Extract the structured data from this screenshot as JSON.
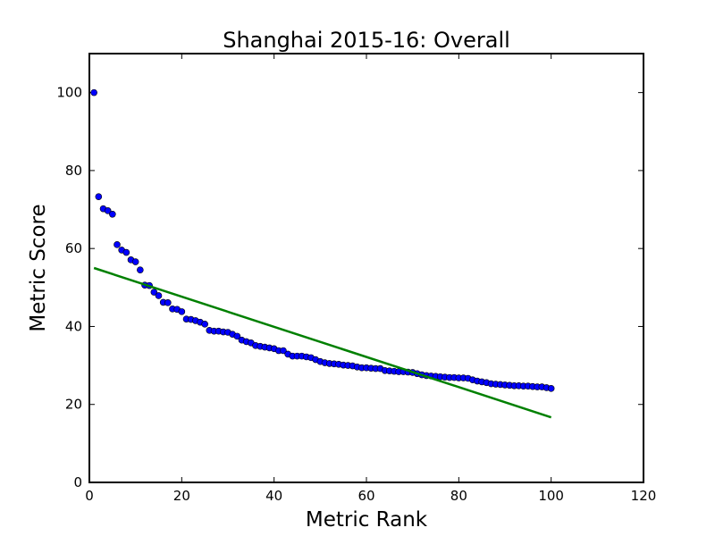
{
  "chart_data": {
    "type": "scatter",
    "title": "Shanghai 2015-16: Overall",
    "xlabel": "Metric Rank",
    "ylabel": "Metric Score",
    "xlim": [
      0,
      120
    ],
    "ylim": [
      0,
      110
    ],
    "xticks": [
      0,
      20,
      40,
      60,
      80,
      100,
      120
    ],
    "yticks": [
      0,
      20,
      40,
      60,
      80,
      100
    ],
    "grid": false,
    "colors": {
      "points": "#0000ff",
      "trend": "#008000",
      "axes": "#000000"
    },
    "series": [
      {
        "type": "scatter",
        "x": [
          1,
          2,
          3,
          4,
          5,
          6,
          7,
          8,
          9,
          10,
          11,
          12,
          13,
          14,
          15,
          16,
          17,
          18,
          19,
          20,
          21,
          22,
          23,
          24,
          25,
          26,
          27,
          28,
          29,
          30,
          31,
          32,
          33,
          34,
          35,
          36,
          37,
          38,
          39,
          40,
          41,
          42,
          43,
          44,
          45,
          46,
          47,
          48,
          49,
          50,
          51,
          52,
          53,
          54,
          55,
          56,
          57,
          58,
          59,
          60,
          61,
          62,
          63,
          64,
          65,
          66,
          67,
          68,
          69,
          70,
          71,
          72,
          73,
          74,
          75,
          76,
          77,
          78,
          79,
          80,
          81,
          82,
          83,
          84,
          85,
          86,
          87,
          88,
          89,
          90,
          91,
          92,
          93,
          94,
          95,
          96,
          97,
          98,
          99,
          100
        ],
        "y": [
          100,
          73.3,
          70.2,
          69.7,
          68.8,
          61,
          59.6,
          59,
          57.1,
          56.6,
          54.5,
          50.6,
          50.5,
          48.8,
          47.9,
          46.2,
          46.1,
          44.5,
          44.4,
          43.8,
          41.9,
          41.8,
          41.5,
          41.1,
          40.6,
          39,
          38.8,
          38.8,
          38.6,
          38.5,
          38,
          37.5,
          36.5,
          36.1,
          35.8,
          35.1,
          34.9,
          34.7,
          34.5,
          34.3,
          33.8,
          33.8,
          32.9,
          32.4,
          32.4,
          32.4,
          32.2,
          32,
          31.5,
          31,
          30.7,
          30.5,
          30.4,
          30.3,
          30.1,
          30,
          29.9,
          29.6,
          29.4,
          29.4,
          29.3,
          29.2,
          29.2,
          28.7,
          28.6,
          28.5,
          28.4,
          28.4,
          28.3,
          28.2,
          27.9,
          27.6,
          27.4,
          27.3,
          27.2,
          27.1,
          27,
          26.9,
          26.9,
          26.8,
          26.8,
          26.7,
          26.3,
          26,
          25.8,
          25.6,
          25.3,
          25.2,
          25.1,
          25,
          24.9,
          24.8,
          24.8,
          24.7,
          24.7,
          24.6,
          24.5,
          24.5,
          24.3,
          24.1
        ]
      },
      {
        "type": "line",
        "x": [
          1,
          100
        ],
        "y": [
          55,
          16.7
        ]
      }
    ]
  }
}
